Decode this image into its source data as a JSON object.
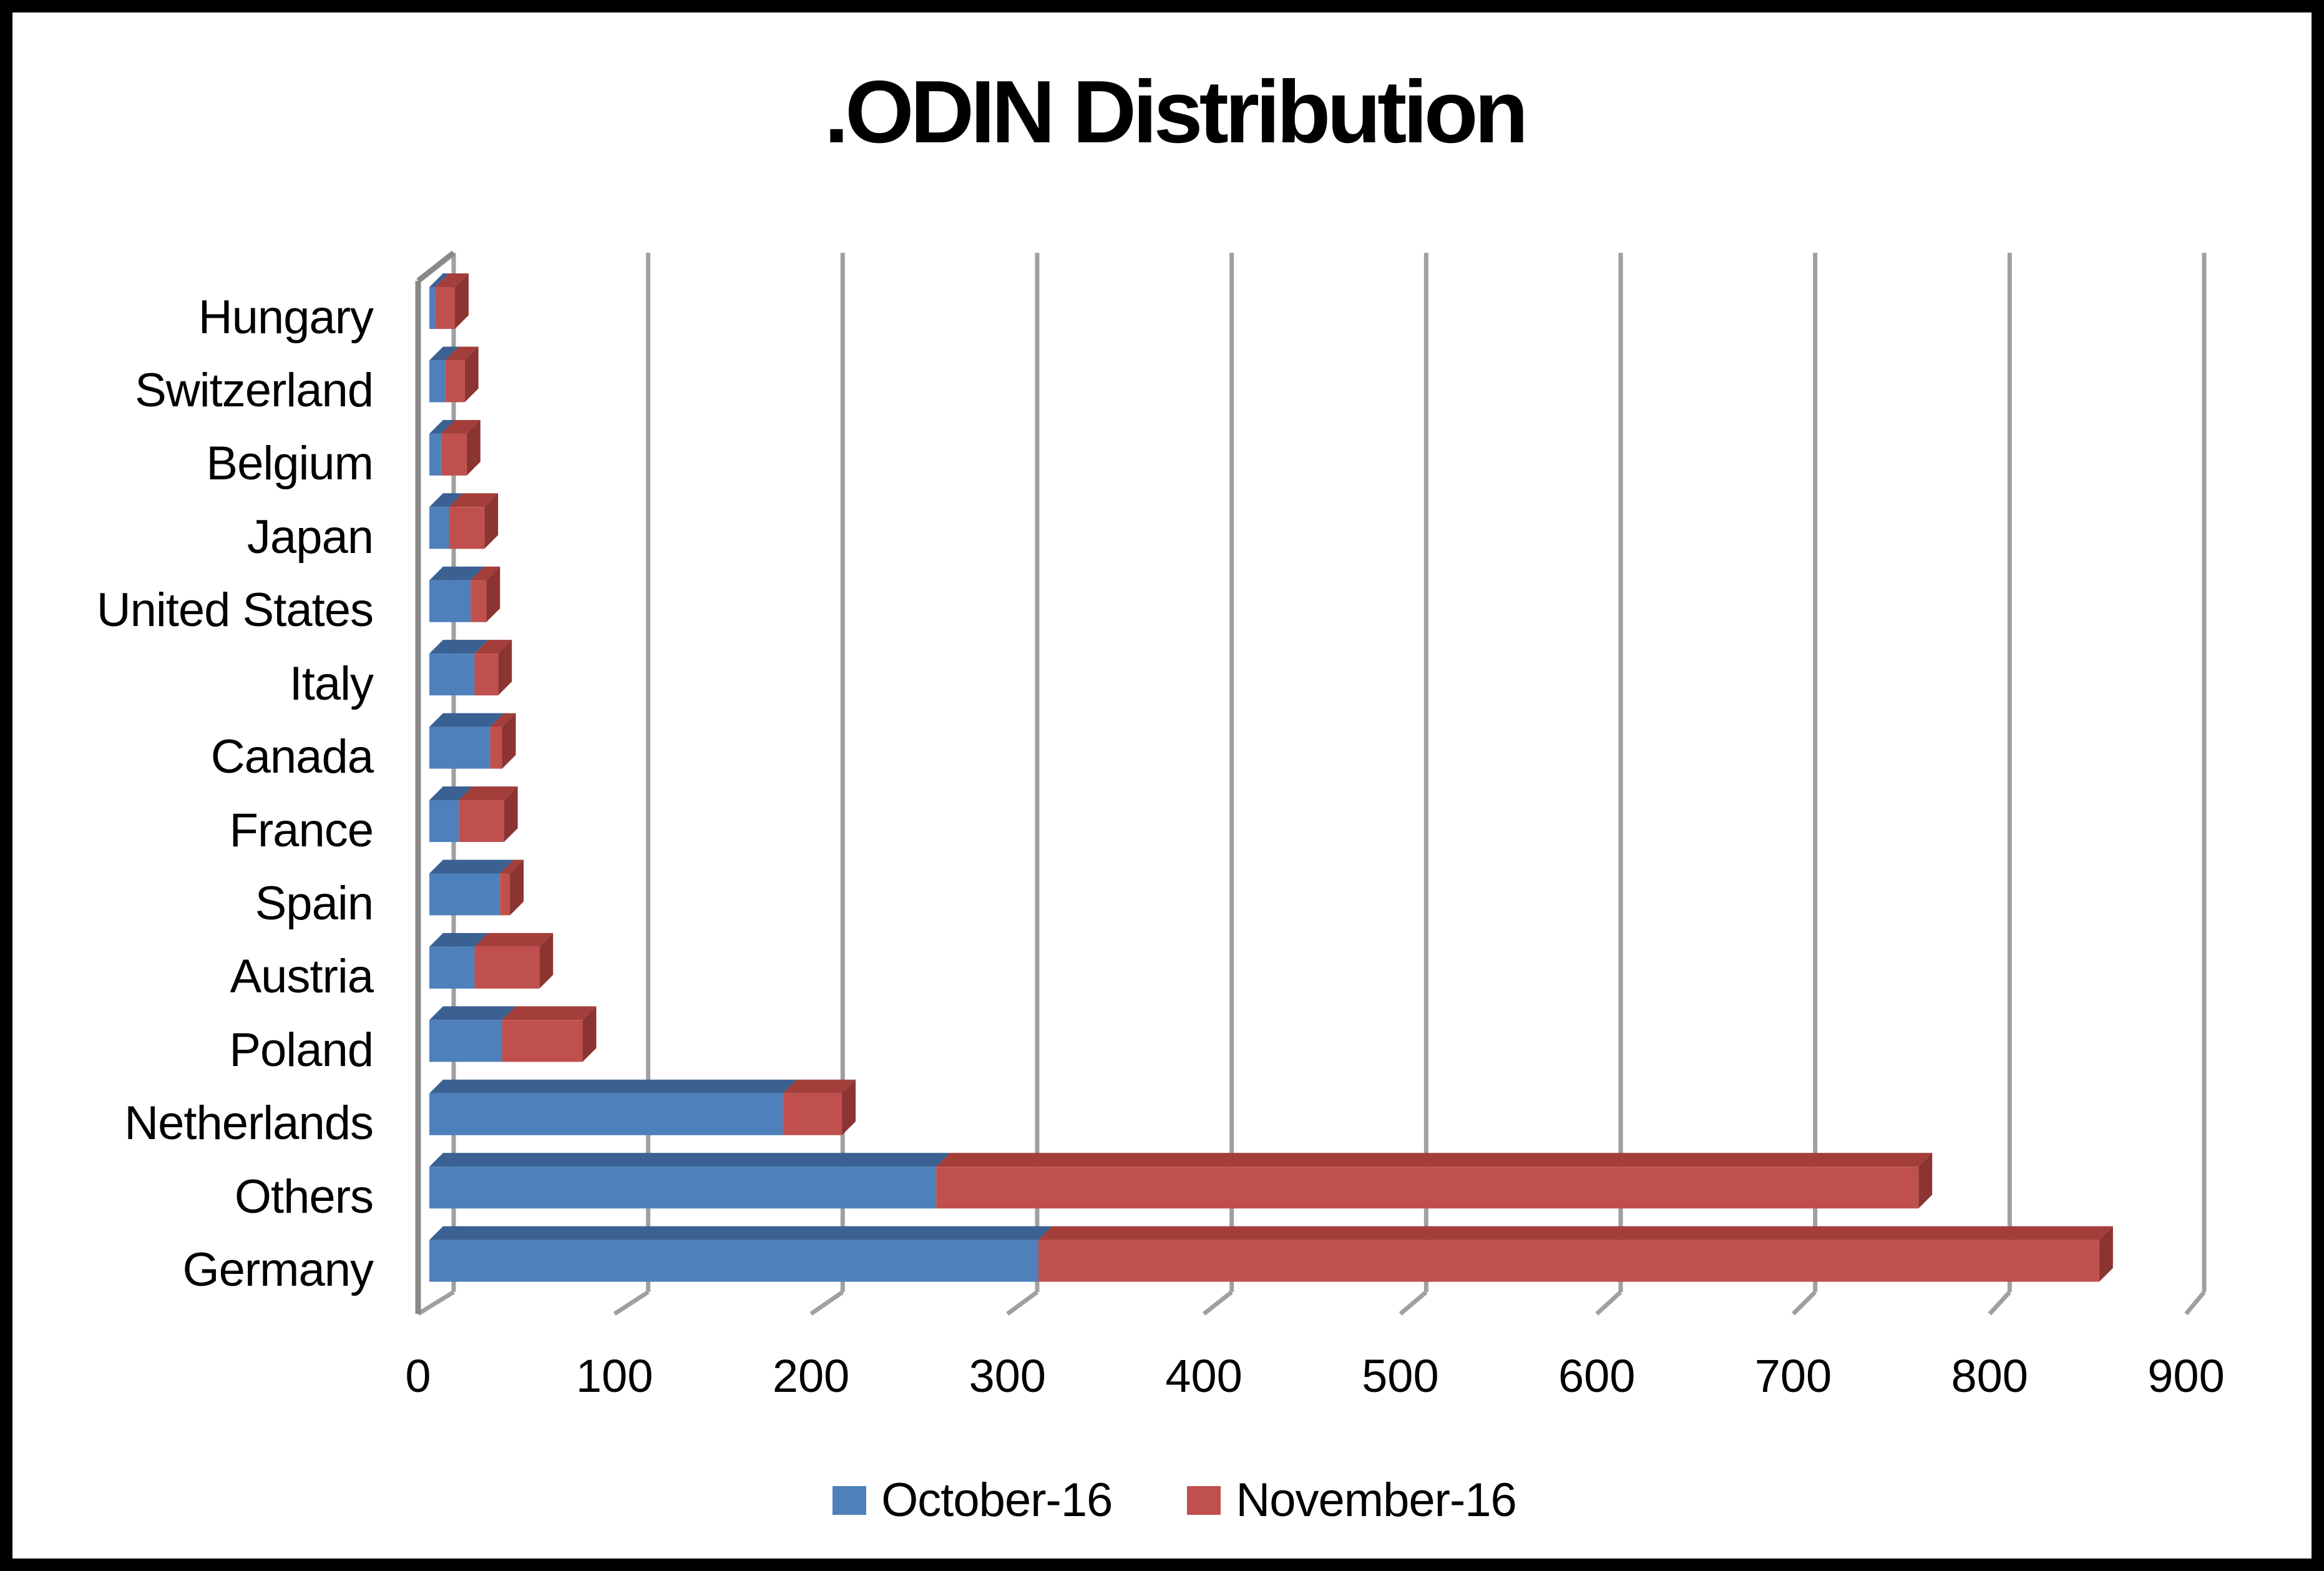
{
  "title": ".ODIN Distribution",
  "legend": {
    "items": [
      {
        "label": "October-16",
        "color": "#4e80bc"
      },
      {
        "label": "November-16",
        "color": "#c0504d"
      }
    ]
  },
  "chart_data": {
    "type": "bar",
    "orientation": "horizontal",
    "stacked": true,
    "style": "3d",
    "title": ".ODIN Distribution",
    "xlabel": "",
    "ylabel": "",
    "grid": true,
    "legend_position": "bottom",
    "x_axis": {
      "min": 0,
      "max": 900,
      "tick_step": 100,
      "tick_labels": [
        "0",
        "100",
        "200",
        "300",
        "400",
        "500",
        "600",
        "700",
        "800",
        "900"
      ]
    },
    "categories_top_to_bottom": [
      "Hungary",
      "Switzerland",
      "Belgium",
      "Japan",
      "United States",
      "Italy",
      "Canada",
      "France",
      "Spain",
      "Austria",
      "Poland",
      "Netherlands",
      "Others",
      "Germany"
    ],
    "series": [
      {
        "name": "October-16",
        "color": "#4e80bc",
        "values": [
          3,
          8,
          6,
          10,
          21,
          23,
          31,
          15,
          36,
          23,
          37,
          180,
          258,
          310
        ]
      },
      {
        "name": "November-16",
        "color": "#c0504d",
        "values": [
          10,
          10,
          13,
          18,
          8,
          12,
          6,
          23,
          5,
          33,
          41,
          30,
          500,
          540
        ]
      }
    ]
  }
}
